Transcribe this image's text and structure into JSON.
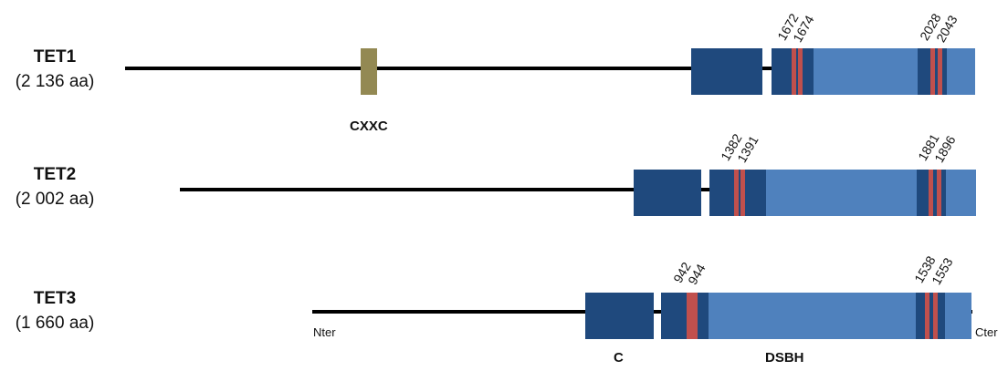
{
  "colors": {
    "backbone": "#000000",
    "cxxc_domain": "#938953",
    "c_domain": "#1f497d",
    "core_dark": "#1f497d",
    "dsbh_domain": "#4f81bd",
    "mutation_site": "#c0504d"
  },
  "proteins": [
    {
      "name": "TET1",
      "length": "(2 136 aa)",
      "sites": [
        "1672",
        "1674",
        "2028",
        "2043"
      ]
    },
    {
      "name": "TET2",
      "length": "(2 002 aa)",
      "sites": [
        "1382",
        "1391",
        "1881",
        "1896"
      ]
    },
    {
      "name": "TET3",
      "length": "(1 660 aa)",
      "sites": [
        "942",
        "944",
        "1538",
        "1553"
      ]
    }
  ],
  "labels": {
    "cxxc": "CXXC",
    "c": "C",
    "dsbh": "DSBH",
    "nter": "Nter",
    "cter": "Cter"
  }
}
